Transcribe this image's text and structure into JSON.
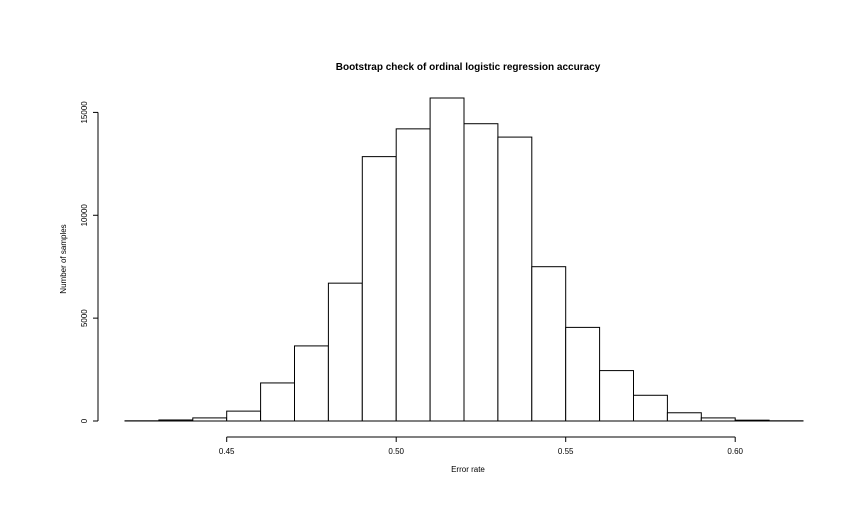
{
  "chart_data": {
    "type": "bar",
    "title": "Bootstrap check of ordinal logistic regression accuracy",
    "xlabel": "Error rate",
    "ylabel": "Number of samples",
    "x_ticks": [
      "0.45",
      "0.50",
      "0.55",
      "0.60"
    ],
    "y_ticks": [
      "0",
      "5000",
      "10000",
      "15000"
    ],
    "bin_width": 0.01,
    "bins": [
      {
        "x0": 0.42,
        "x1": 0.43,
        "value": 10
      },
      {
        "x0": 0.43,
        "x1": 0.44,
        "value": 50
      },
      {
        "x0": 0.44,
        "x1": 0.45,
        "value": 150
      },
      {
        "x0": 0.45,
        "x1": 0.46,
        "value": 480
      },
      {
        "x0": 0.46,
        "x1": 0.47,
        "value": 1850
      },
      {
        "x0": 0.47,
        "x1": 0.48,
        "value": 3650
      },
      {
        "x0": 0.48,
        "x1": 0.49,
        "value": 6700
      },
      {
        "x0": 0.49,
        "x1": 0.5,
        "value": 12850
      },
      {
        "x0": 0.5,
        "x1": 0.51,
        "value": 14200
      },
      {
        "x0": 0.51,
        "x1": 0.52,
        "value": 15700
      },
      {
        "x0": 0.52,
        "x1": 0.53,
        "value": 14450
      },
      {
        "x0": 0.53,
        "x1": 0.54,
        "value": 13800
      },
      {
        "x0": 0.54,
        "x1": 0.55,
        "value": 7500
      },
      {
        "x0": 0.55,
        "x1": 0.56,
        "value": 4550
      },
      {
        "x0": 0.56,
        "x1": 0.57,
        "value": 2450
      },
      {
        "x0": 0.57,
        "x1": 0.58,
        "value": 1250
      },
      {
        "x0": 0.58,
        "x1": 0.59,
        "value": 400
      },
      {
        "x0": 0.59,
        "x1": 0.6,
        "value": 150
      },
      {
        "x0": 0.6,
        "x1": 0.61,
        "value": 40
      },
      {
        "x0": 0.61,
        "x1": 0.62,
        "value": 10
      }
    ],
    "xlim": [
      0.42,
      0.62
    ],
    "ylim": [
      0,
      15700
    ],
    "grid": false,
    "legend": "none",
    "bar_fill": "#ffffff",
    "bar_stroke": "#000000"
  }
}
